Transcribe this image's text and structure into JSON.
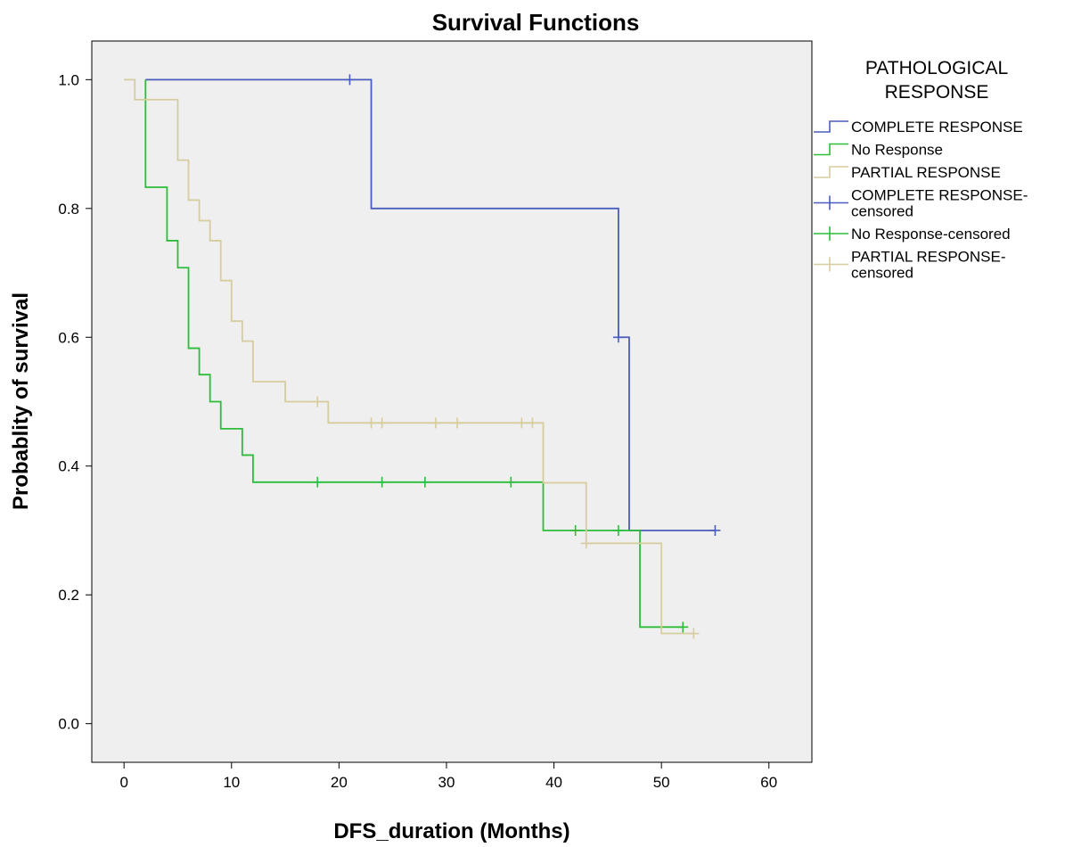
{
  "chart_data": {
    "type": "line",
    "subtype": "kaplan-meier step",
    "title": "Survival Functions",
    "xlabel": "DFS_duration (Months)",
    "ylabel": "Probablity of survival",
    "xlim": [
      -3,
      64
    ],
    "ylim": [
      -0.06,
      1.06
    ],
    "xticks": [
      0,
      10,
      20,
      30,
      40,
      50,
      60
    ],
    "xtick_labels": [
      "0",
      "10",
      "20",
      "30",
      "40",
      "50",
      "60"
    ],
    "yticks": [
      0.0,
      0.2,
      0.4,
      0.6,
      0.8,
      1.0
    ],
    "ytick_labels": [
      "0.0",
      "0.2",
      "0.4",
      "0.6",
      "0.8",
      "1.0"
    ],
    "grid": false,
    "background": "#efefef",
    "legend": {
      "placement": "right",
      "title_lines": [
        "PATHOLOGICAL",
        "RESPONSE"
      ],
      "entries": [
        {
          "kind": "step",
          "color": "#4a5dbc",
          "lines": [
            "COMPLETE RESPONSE"
          ]
        },
        {
          "kind": "step",
          "color": "#2dbd3a",
          "lines": [
            "No Response"
          ]
        },
        {
          "kind": "step",
          "color": "#d6cc9d",
          "lines": [
            "PARTIAL RESPONSE"
          ]
        },
        {
          "kind": "censor",
          "color": "#4a5dbc",
          "lines": [
            "COMPLETE RESPONSE-",
            "censored"
          ]
        },
        {
          "kind": "censor",
          "color": "#2dbd3a",
          "lines": [
            "No Response-censored"
          ]
        },
        {
          "kind": "censor",
          "color": "#d6cc9d",
          "lines": [
            "PARTIAL RESPONSE-",
            "censored"
          ]
        }
      ]
    },
    "series": [
      {
        "name": "COMPLETE RESPONSE",
        "color": "#4a5dbc",
        "steps": [
          [
            2,
            1.0
          ],
          [
            23,
            0.8
          ],
          [
            46,
            0.6
          ],
          [
            47,
            0.3
          ],
          [
            55,
            0.3
          ]
        ],
        "censored": [
          [
            21,
            1.0
          ],
          [
            46,
            0.6
          ],
          [
            55,
            0.3
          ]
        ]
      },
      {
        "name": "No Response",
        "color": "#2dbd3a",
        "steps": [
          [
            2,
            1.0
          ],
          [
            2,
            0.833
          ],
          [
            4,
            0.75
          ],
          [
            5,
            0.708
          ],
          [
            6,
            0.583
          ],
          [
            7,
            0.542
          ],
          [
            8,
            0.5
          ],
          [
            9,
            0.458
          ],
          [
            11,
            0.417
          ],
          [
            12,
            0.375
          ],
          [
            39,
            0.3
          ],
          [
            48,
            0.15
          ],
          [
            52,
            0.15
          ]
        ],
        "censored": [
          [
            18,
            0.375
          ],
          [
            24,
            0.375
          ],
          [
            28,
            0.375
          ],
          [
            36,
            0.375
          ],
          [
            42,
            0.3
          ],
          [
            46,
            0.3
          ],
          [
            52,
            0.15
          ]
        ]
      },
      {
        "name": "PARTIAL RESPONSE",
        "color": "#d6cc9d",
        "steps": [
          [
            0,
            1.0
          ],
          [
            1,
            0.969
          ],
          [
            5,
            0.875
          ],
          [
            6,
            0.813
          ],
          [
            7,
            0.781
          ],
          [
            8,
            0.75
          ],
          [
            9,
            0.688
          ],
          [
            10,
            0.625
          ],
          [
            11,
            0.594
          ],
          [
            12,
            0.531
          ],
          [
            15,
            0.5
          ],
          [
            19,
            0.467
          ],
          [
            39,
            0.374
          ],
          [
            43,
            0.28
          ],
          [
            50,
            0.14
          ],
          [
            53,
            0.14
          ]
        ],
        "censored": [
          [
            18,
            0.5
          ],
          [
            23,
            0.467
          ],
          [
            24,
            0.467
          ],
          [
            29,
            0.467
          ],
          [
            31,
            0.467
          ],
          [
            37,
            0.467
          ],
          [
            38,
            0.467
          ],
          [
            43,
            0.28
          ],
          [
            53,
            0.14
          ]
        ]
      }
    ]
  }
}
